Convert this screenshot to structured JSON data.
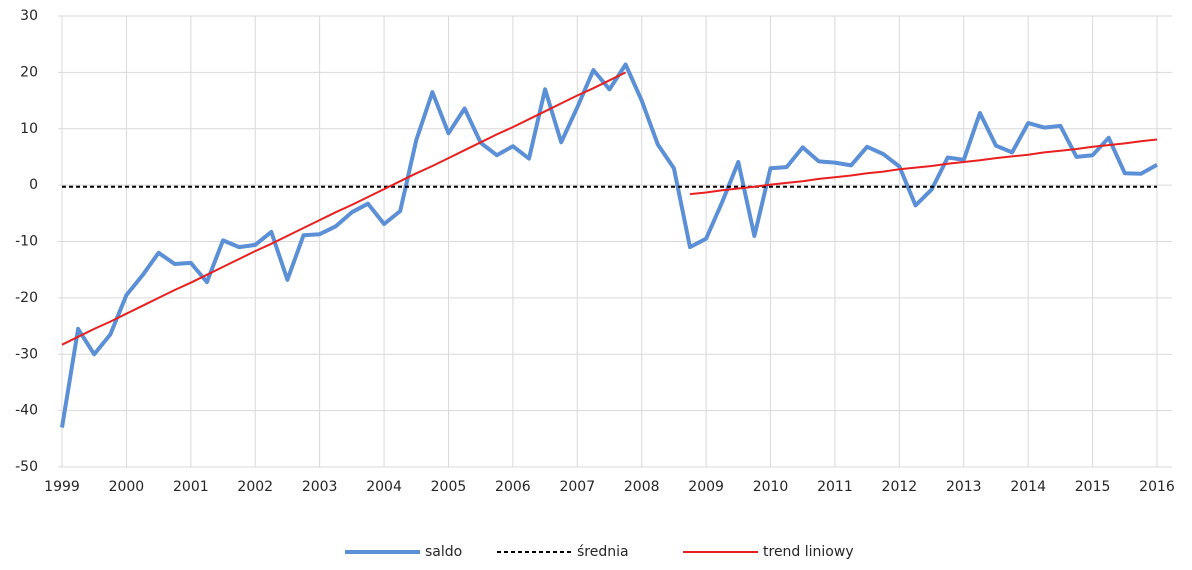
{
  "chart_data": {
    "type": "line",
    "categories": [
      "1999",
      null,
      null,
      null,
      "2000",
      null,
      null,
      null,
      "2001",
      null,
      null,
      null,
      "2002",
      null,
      null,
      null,
      "2003",
      null,
      null,
      null,
      "2004",
      null,
      null,
      null,
      "2005",
      null,
      null,
      null,
      "2006",
      null,
      null,
      null,
      "2007",
      null,
      null,
      null,
      "2008",
      null,
      null,
      null,
      "2009",
      null,
      null,
      null,
      "2010",
      null,
      null,
      null,
      "2011",
      null,
      null,
      null,
      "2012",
      null,
      null,
      null,
      "2013",
      null,
      null,
      null,
      "2014",
      null,
      null,
      null,
      "2015",
      null,
      null,
      null,
      "2016"
    ],
    "series": [
      {
        "name": "saldo",
        "color": "#5b8fd6",
        "width": 4,
        "dash": false,
        "values": [
          -43,
          -25.5,
          -30,
          -26.5,
          -19.5,
          -16,
          -12,
          -14,
          -13.8,
          -17.2,
          -9.8,
          -11,
          -10.6,
          -8.3,
          -16.8,
          -8.9,
          -8.7,
          -7.3,
          -4.8,
          -3.3,
          -6.9,
          -4.6,
          8,
          16.5,
          9.2,
          13.6,
          7.5,
          5.3,
          6.9,
          4.7,
          17,
          7.6,
          13.8,
          20.4,
          17,
          21.4,
          15,
          7.2,
          3,
          -11,
          -9.5,
          -3,
          4.1,
          -9,
          3,
          3.2,
          6.7,
          4.2,
          4,
          3.5,
          6.8,
          5.5,
          3.3,
          -3.6,
          -0.8,
          4.9,
          4.5,
          12.8,
          7,
          5.8,
          11,
          10.2,
          10.5,
          5,
          5.3,
          8.4,
          2.1,
          2,
          3.6
        ]
      },
      {
        "name": "średnia",
        "color": "#000000",
        "width": 2,
        "dash": true,
        "values": [
          -0.3,
          -0.3,
          -0.3,
          -0.3,
          -0.3,
          -0.3,
          -0.3,
          -0.3,
          -0.3,
          -0.3,
          -0.3,
          -0.3,
          -0.3,
          -0.3,
          -0.3,
          -0.3,
          -0.3,
          -0.3,
          -0.3,
          -0.3,
          -0.3,
          -0.3,
          -0.3,
          -0.3,
          -0.3,
          -0.3,
          -0.3,
          -0.3,
          -0.3,
          -0.3,
          -0.3,
          -0.3,
          -0.3,
          -0.3,
          -0.3,
          -0.3,
          -0.3,
          -0.3,
          -0.3,
          -0.3,
          -0.3,
          -0.3,
          -0.3,
          -0.3,
          -0.3,
          -0.3,
          -0.3,
          -0.3,
          -0.3,
          -0.3,
          -0.3,
          -0.3,
          -0.3,
          -0.3,
          -0.3,
          -0.3,
          -0.3,
          -0.3,
          -0.3,
          -0.3,
          -0.3,
          -0.3,
          -0.3,
          -0.3,
          -0.3,
          -0.3,
          -0.3,
          -0.3,
          -0.3
        ]
      },
      {
        "name": "trend liniowy",
        "color": "#e8201f",
        "width": 2,
        "dash": false,
        "values": [
          -28.3,
          -26.9,
          -25.5,
          -24.2,
          -22.8,
          -21.4,
          -20.0,
          -18.6,
          -17.3,
          -15.9,
          -14.5,
          -13.1,
          -11.7,
          -10.4,
          -9.0,
          -7.6,
          -6.2,
          -4.8,
          -3.5,
          -2.1,
          -0.7,
          0.7,
          2.1,
          3.4,
          4.8,
          6.2,
          7.6,
          9.0,
          10.3,
          11.7,
          13.1,
          14.5,
          15.9,
          17.2,
          18.6,
          20.0,
          null,
          null,
          null,
          -1.6,
          -1.3,
          -0.9,
          -0.6,
          -0.3,
          0.1,
          0.4,
          0.7,
          1.1,
          1.4,
          1.7,
          2.1,
          2.4,
          2.8,
          3.1,
          3.4,
          3.8,
          4.1,
          4.4,
          4.8,
          5.1,
          5.4,
          5.8,
          6.1,
          6.4,
          6.8,
          7.1,
          7.4,
          7.8,
          8.1
        ]
      }
    ],
    "ylim": [
      -50,
      30
    ],
    "yticks": [
      -50,
      -40,
      -30,
      -20,
      -10,
      0,
      10,
      20,
      30
    ],
    "grid": true,
    "legend": "bottom"
  }
}
